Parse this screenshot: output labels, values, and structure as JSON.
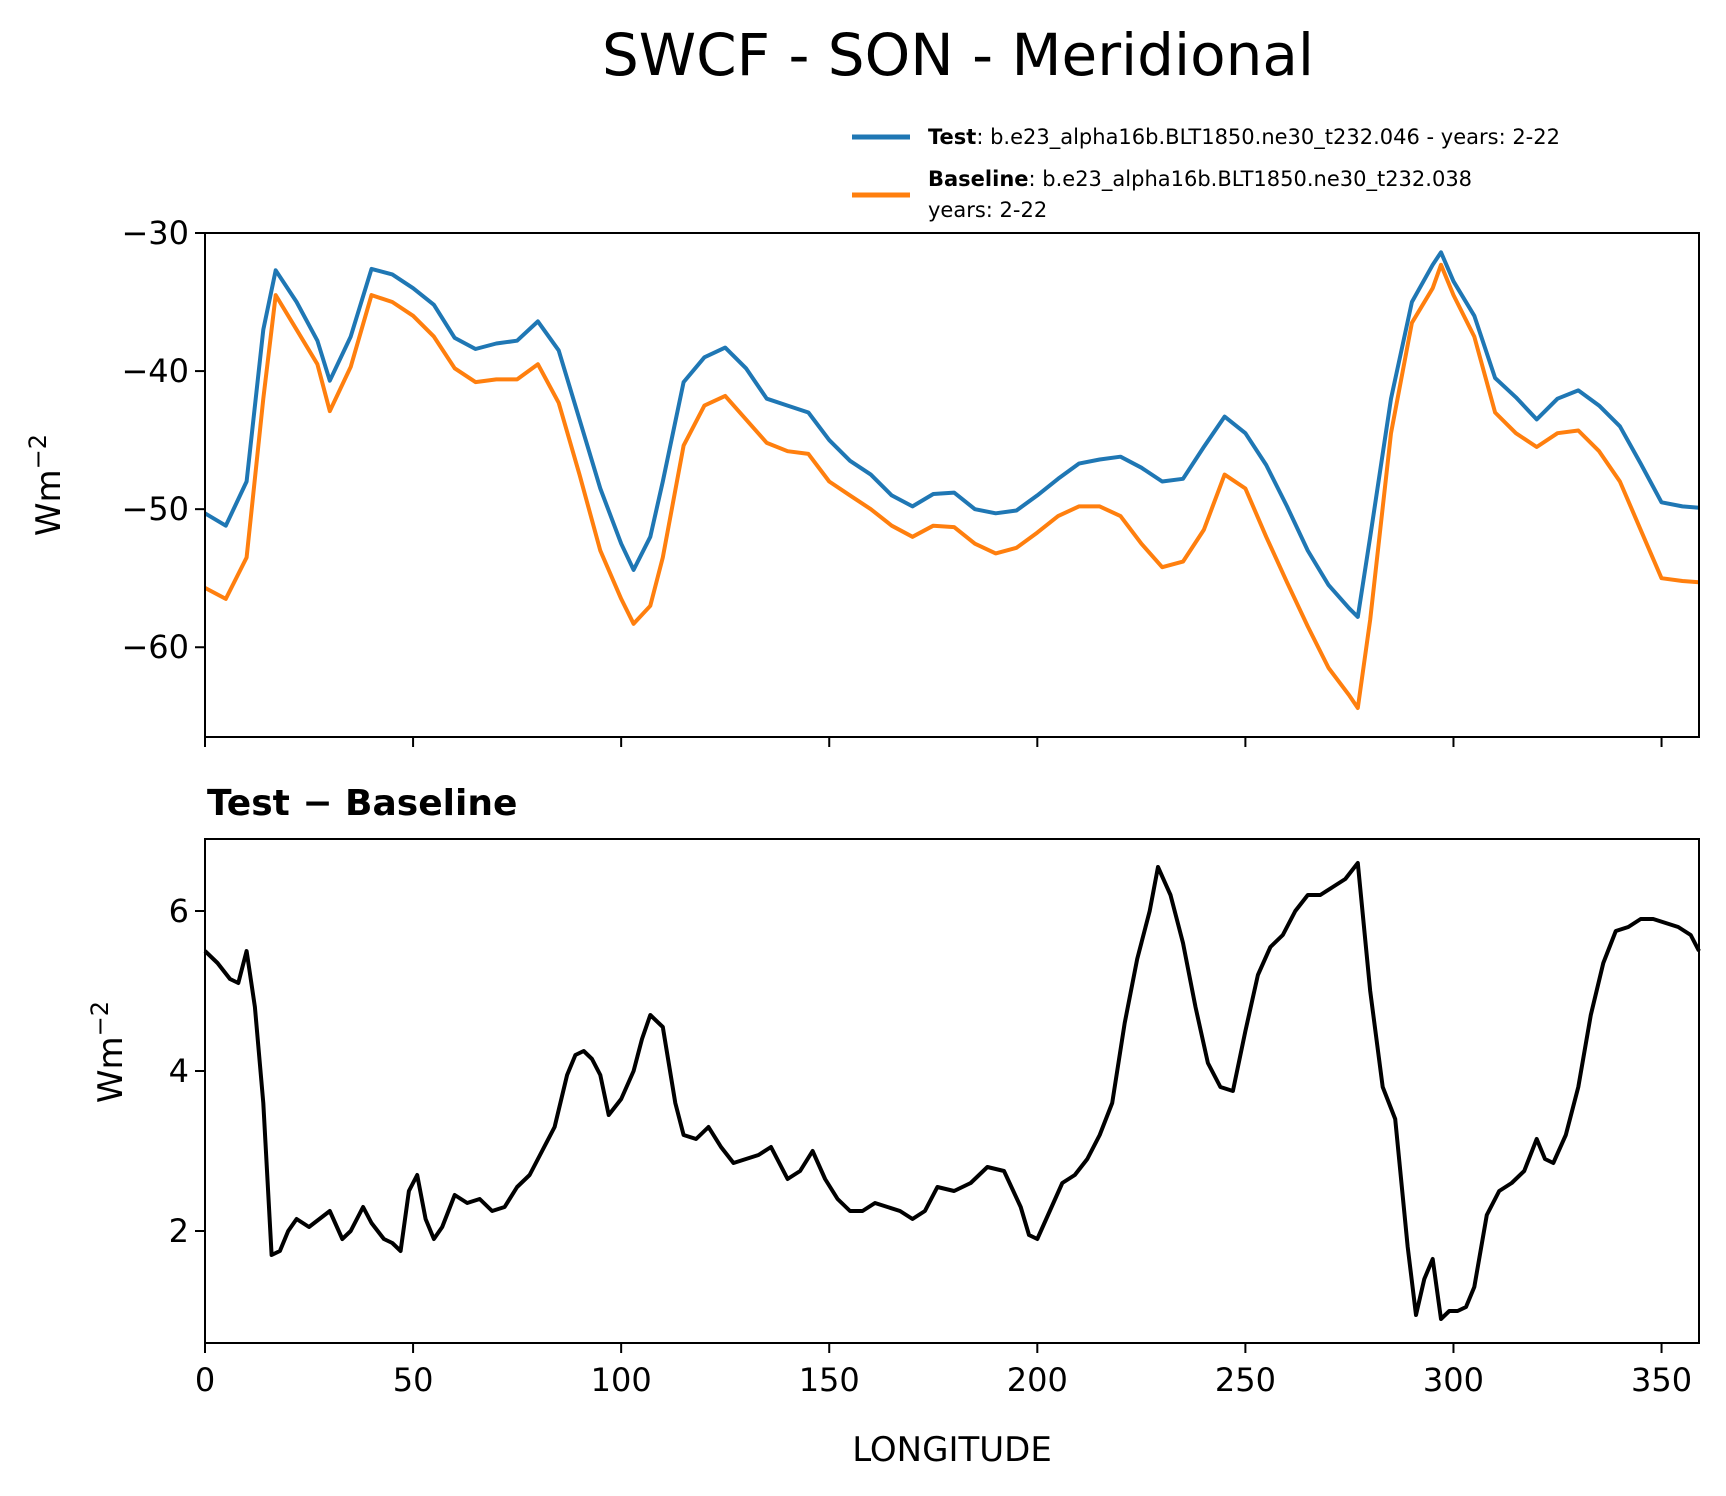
{
  "chart_data": [
    {
      "type": "line",
      "title": "SWCF - SON - Meridional",
      "xlabel": "",
      "ylabel": "Wm",
      "ylabel_exp": "−2",
      "xlim": [
        0,
        359
      ],
      "ylim": [
        -66.5,
        -30
      ],
      "yticks": [
        -30,
        -40,
        -50,
        -60
      ],
      "ytick_labels": [
        "−30",
        "−40",
        "−50",
        "−60"
      ],
      "xticks": [
        0,
        50,
        100,
        150,
        200,
        250,
        300,
        350
      ],
      "x": [
        0,
        5,
        10,
        14,
        17,
        22,
        27,
        30,
        35,
        40,
        45,
        50,
        55,
        60,
        65,
        70,
        75,
        80,
        85,
        90,
        95,
        100,
        103,
        107,
        110,
        115,
        120,
        125,
        130,
        135,
        140,
        145,
        150,
        155,
        160,
        165,
        170,
        175,
        180,
        185,
        190,
        195,
        200,
        205,
        210,
        215,
        220,
        225,
        230,
        235,
        240,
        245,
        250,
        255,
        260,
        265,
        270,
        275,
        277,
        280,
        285,
        290,
        295,
        297,
        300,
        305,
        310,
        315,
        320,
        325,
        330,
        335,
        340,
        345,
        350,
        355,
        359
      ],
      "series": [
        {
          "name": "Test",
          "color": "#1f77b4",
          "legend_label": "Test",
          "legend_text": ": b.e23_alpha16b.BLT1850.ne30_t232.046 - years: 2-22",
          "values": [
            -50.3,
            -51.2,
            -48,
            -37,
            -32.7,
            -35,
            -37.8,
            -40.7,
            -37.5,
            -32.6,
            -33,
            -34,
            -35.2,
            -37.6,
            -38.4,
            -38,
            -37.8,
            -36.4,
            -38.5,
            -43.5,
            -48.5,
            -52.5,
            -54.4,
            -52,
            -48,
            -40.8,
            -39,
            -38.3,
            -39.8,
            -42,
            -42.5,
            -43,
            -45,
            -46.5,
            -47.5,
            -49,
            -49.8,
            -48.9,
            -48.8,
            -50,
            -50.3,
            -50.1,
            -49,
            -47.8,
            -46.7,
            -46.4,
            -46.2,
            -47,
            -48,
            -47.8,
            -45.5,
            -43.3,
            -44.5,
            -46.8,
            -49.8,
            -53,
            -55.5,
            -57.2,
            -57.8,
            -52,
            -42,
            -35,
            -32.3,
            -31.4,
            -33.5,
            -36,
            -40.5,
            -41.9,
            -43.5,
            -42,
            -41.4,
            -42.5,
            -44,
            -46.7,
            -49.5,
            -49.8,
            -49.9
          ]
        },
        {
          "name": "Baseline",
          "color": "#ff7f0e",
          "legend_label": "Baseline",
          "legend_text": ": b.e23_alpha16b.BLT1850.ne30_t232.038",
          "legend_text2": "years: 2-22",
          "values": [
            -55.7,
            -56.5,
            -53.5,
            -42,
            -34.5,
            -37,
            -39.5,
            -42.9,
            -39.7,
            -34.5,
            -35,
            -36,
            -37.5,
            -39.8,
            -40.8,
            -40.6,
            -40.6,
            -39.5,
            -42.3,
            -47.5,
            -53,
            -56.5,
            -58.3,
            -57,
            -53.5,
            -45.4,
            -42.5,
            -41.8,
            -43.5,
            -45.2,
            -45.8,
            -46,
            -48,
            -49,
            -50,
            -51.2,
            -52,
            -51.2,
            -51.3,
            -52.5,
            -53.2,
            -52.8,
            -51.7,
            -50.5,
            -49.8,
            -49.8,
            -50.5,
            -52.5,
            -54.2,
            -53.8,
            -51.5,
            -47.5,
            -48.5,
            -52,
            -55.3,
            -58.5,
            -61.5,
            -63.5,
            -64.4,
            -58,
            -44.5,
            -36.5,
            -34,
            -32.3,
            -34.5,
            -37.5,
            -43,
            -44.5,
            -45.5,
            -44.5,
            -44.3,
            -45.8,
            -48,
            -51.5,
            -55,
            -55.2,
            -55.3
          ]
        }
      ]
    },
    {
      "type": "line",
      "title": "Test − Baseline",
      "xlabel": "LONGITUDE",
      "ylabel": "Wm",
      "ylabel_exp": "−2",
      "xlim": [
        0,
        359
      ],
      "ylim": [
        0.6,
        6.9
      ],
      "yticks": [
        2,
        4,
        6
      ],
      "ytick_labels": [
        "2",
        "4",
        "6"
      ],
      "xticks": [
        0,
        50,
        100,
        150,
        200,
        250,
        300,
        350
      ],
      "xtick_labels": [
        "0",
        "50",
        "100",
        "150",
        "200",
        "250",
        "300",
        "350"
      ],
      "x": [
        0,
        3,
        6,
        8,
        10,
        12,
        14,
        16,
        18,
        20,
        22,
        25,
        30,
        33,
        35,
        38,
        40,
        43,
        45,
        47,
        49,
        51,
        53,
        55,
        57,
        60,
        63,
        66,
        69,
        72,
        75,
        78,
        81,
        84,
        87,
        89,
        91,
        93,
        95,
        97,
        100,
        103,
        105,
        107,
        110,
        113,
        115,
        118,
        121,
        124,
        127,
        130,
        133,
        136,
        140,
        143,
        146,
        149,
        152,
        155,
        158,
        161,
        164,
        167,
        170,
        173,
        176,
        180,
        184,
        188,
        192,
        196,
        198,
        200,
        203,
        206,
        209,
        212,
        215,
        218,
        221,
        224,
        227,
        229,
        232,
        235,
        238,
        241,
        244,
        247,
        250,
        253,
        256,
        259,
        262,
        265,
        268,
        271,
        274,
        277,
        280,
        283,
        286,
        289,
        291,
        293,
        295,
        297,
        299,
        301,
        303,
        305,
        308,
        311,
        314,
        317,
        320,
        322,
        324,
        327,
        330,
        333,
        336,
        339,
        342,
        345,
        348,
        351,
        354,
        357,
        359
      ],
      "series": [
        {
          "name": "Test − Baseline",
          "color": "#000000",
          "values": [
            5.5,
            5.35,
            5.15,
            5.1,
            5.5,
            4.8,
            3.6,
            1.7,
            1.75,
            2.0,
            2.15,
            2.05,
            2.25,
            1.9,
            2.0,
            2.3,
            2.1,
            1.9,
            1.85,
            1.75,
            2.5,
            2.7,
            2.15,
            1.9,
            2.05,
            2.45,
            2.35,
            2.4,
            2.25,
            2.3,
            2.55,
            2.7,
            3.0,
            3.3,
            3.95,
            4.2,
            4.25,
            4.15,
            3.95,
            3.45,
            3.65,
            4.0,
            4.4,
            4.7,
            4.55,
            3.6,
            3.2,
            3.15,
            3.3,
            3.05,
            2.85,
            2.9,
            2.95,
            3.05,
            2.65,
            2.75,
            3.0,
            2.65,
            2.4,
            2.25,
            2.25,
            2.35,
            2.3,
            2.25,
            2.15,
            2.25,
            2.55,
            2.5,
            2.6,
            2.8,
            2.75,
            2.3,
            1.95,
            1.9,
            2.25,
            2.6,
            2.7,
            2.9,
            3.2,
            3.6,
            4.6,
            5.4,
            6.0,
            6.55,
            6.2,
            5.6,
            4.8,
            4.1,
            3.8,
            3.75,
            4.5,
            5.2,
            5.55,
            5.7,
            6.0,
            6.2,
            6.2,
            6.3,
            6.4,
            6.6,
            5.0,
            3.8,
            3.4,
            1.8,
            0.95,
            1.4,
            1.65,
            0.9,
            1.0,
            1.0,
            1.05,
            1.3,
            2.2,
            2.5,
            2.6,
            2.75,
            3.15,
            2.9,
            2.85,
            3.2,
            3.8,
            4.7,
            5.35,
            5.75,
            5.8,
            5.9,
            5.9,
            5.85,
            5.8,
            5.7,
            5.5
          ]
        }
      ]
    }
  ]
}
